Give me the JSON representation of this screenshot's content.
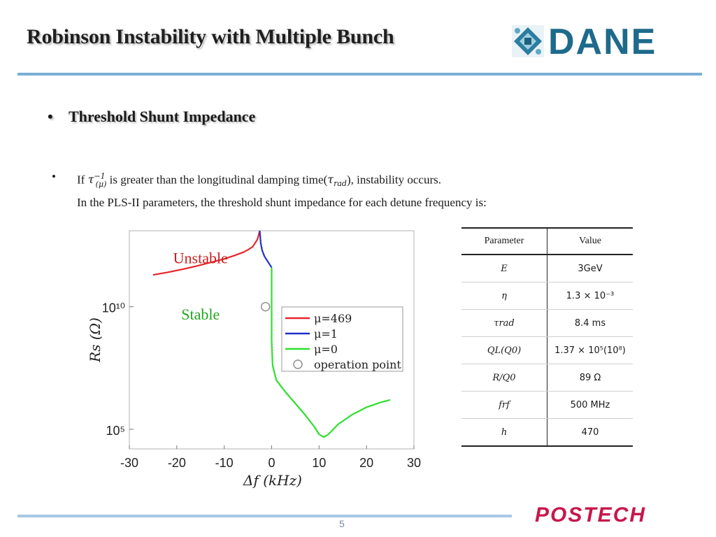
{
  "slide": {
    "title": "Robinson Instability with Multiple Bunch",
    "page_number": "5",
    "logo_text": "DANE",
    "footer_logo_text": "POSTECH"
  },
  "bullets": {
    "main": "Threshold Shunt Impedance",
    "sub_line1_pre": "If ",
    "sub_line1_mid": " is greater than the longitudinal damping time(",
    "sub_line1_post": "), instability occurs.",
    "sub_line2": "In the PLS-II parameters, the threshold shunt impedance for each detune frequency is:"
  },
  "table": {
    "headers": [
      "Parameter",
      "Value"
    ],
    "rows": [
      {
        "param": "E",
        "value": "3GeV"
      },
      {
        "param": "η",
        "value": "1.3 × 10⁻³"
      },
      {
        "param": "τrad",
        "value": "8.4 ms"
      },
      {
        "param": "QL(Q0)",
        "value": "1.37 × 10⁵(10⁸)"
      },
      {
        "param": "R/Q0",
        "value": "89 Ω"
      },
      {
        "param": "frf",
        "value": "500 MHz"
      },
      {
        "param": "h",
        "value": "470"
      }
    ]
  },
  "chart_data": {
    "type": "line",
    "xlabel": "Δf (kHz)",
    "ylabel": "Rs (Ω)",
    "xlim": [
      -30,
      30
    ],
    "yscale": "log",
    "ylim_log10": [
      4.2,
      13.1
    ],
    "xticks": [
      -30,
      -20,
      -10,
      0,
      10,
      20,
      30
    ],
    "xtick_labels": [
      "-30",
      "-20",
      "-10",
      "0",
      "10",
      "20",
      "30"
    ],
    "yticks_log10": [
      5,
      10
    ],
    "ytick_labels": [
      "10⁵",
      "10¹⁰"
    ],
    "annotations": [
      {
        "text": "Unstable",
        "x": -15,
        "y_log10": 12.0,
        "color": "#cc1f1f"
      },
      {
        "text": "Stable",
        "x": -15,
        "y_log10": 9.7,
        "color": "#1fa51f"
      }
    ],
    "legend_position": "center-right",
    "series": [
      {
        "name": "μ=469",
        "color": "#e8262b",
        "points": [
          [
            -25,
            11.3
          ],
          [
            -22,
            11.4
          ],
          [
            -19,
            11.52
          ],
          [
            -16,
            11.65
          ],
          [
            -13,
            11.8
          ],
          [
            -10,
            11.95
          ],
          [
            -8,
            12.08
          ],
          [
            -6,
            12.22
          ],
          [
            -5,
            12.32
          ],
          [
            -4,
            12.45
          ],
          [
            -3,
            12.75
          ],
          [
            -2.5,
            13.1
          ]
        ]
      },
      {
        "name": "μ=1",
        "color": "#2431c4",
        "points": [
          [
            -2.5,
            13.1
          ],
          [
            -2.3,
            12.6
          ],
          [
            -2,
            12.3
          ],
          [
            -1.5,
            12.05
          ],
          [
            -1,
            11.9
          ],
          [
            -0.5,
            11.75
          ],
          [
            0,
            11.6
          ]
        ]
      },
      {
        "name": "μ=0",
        "color": "#2ee02e",
        "points": [
          [
            0,
            11.6
          ],
          [
            0,
            8.6
          ],
          [
            0.2,
            7.6
          ],
          [
            1,
            7.0
          ],
          [
            3,
            6.5
          ],
          [
            5,
            6.05
          ],
          [
            7,
            5.6
          ],
          [
            9,
            5.1
          ],
          [
            10,
            4.8
          ],
          [
            11,
            4.68
          ],
          [
            12,
            4.8
          ],
          [
            14,
            5.2
          ],
          [
            17,
            5.6
          ],
          [
            20,
            5.9
          ],
          [
            23,
            6.1
          ],
          [
            25,
            6.2
          ]
        ]
      },
      {
        "name": "operation point",
        "color": "#8a8a8a",
        "marker": "circle",
        "points": [
          [
            -1.3,
            10.0
          ]
        ]
      }
    ]
  }
}
